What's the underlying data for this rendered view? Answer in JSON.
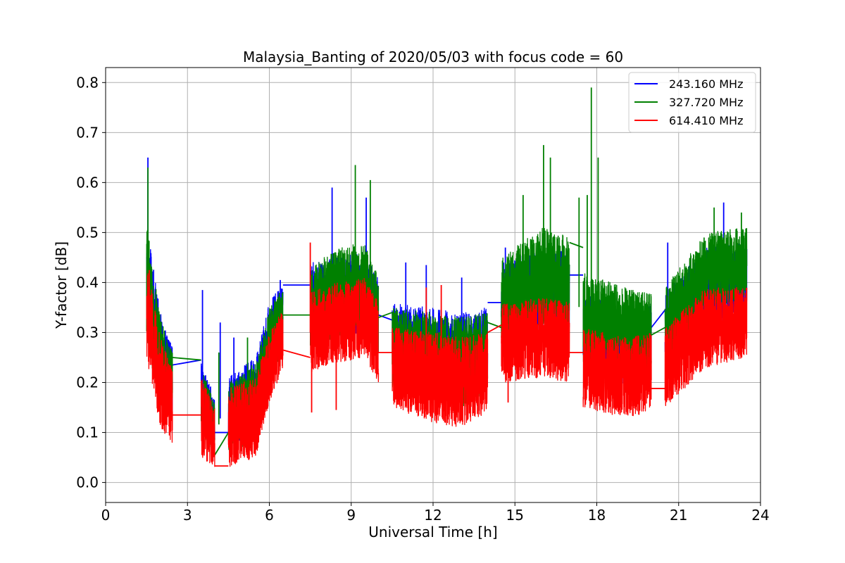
{
  "chart_data": {
    "type": "line",
    "title": "Malaysia_Banting of 2020/05/03 with focus code = 60",
    "xlabel": "Universal Time [h]",
    "ylabel": "Y-factor [dB]",
    "xlim": [
      0,
      24
    ],
    "ylim": [
      -0.04,
      0.83
    ],
    "xticks": [
      0,
      3,
      6,
      9,
      12,
      15,
      18,
      21,
      24
    ],
    "yticks": [
      0.0,
      0.1,
      0.2,
      0.3,
      0.4,
      0.5,
      0.6,
      0.7,
      0.8
    ],
    "grid": true,
    "legend_position": "top-right",
    "segments": [
      {
        "start": 1.5,
        "end": 2.45
      },
      {
        "start": 3.5,
        "end": 4.0
      },
      {
        "start": 4.5,
        "end": 6.5
      },
      {
        "start": 7.5,
        "end": 10.0
      },
      {
        "start": 10.5,
        "end": 14.0
      },
      {
        "start": 14.5,
        "end": 17.0
      },
      {
        "start": 17.5,
        "end": 20.0
      },
      {
        "start": 20.5,
        "end": 23.5
      }
    ],
    "series": [
      {
        "name": "243.160 MHz",
        "color": "#0000ff",
        "profile": [
          [
            1.5,
            0.4,
            0.12
          ],
          [
            2.0,
            0.25,
            0.09
          ],
          [
            2.45,
            0.2,
            0.07
          ],
          [
            3.5,
            0.17,
            0.07
          ],
          [
            4.0,
            0.12,
            0.05
          ],
          [
            4.5,
            0.14,
            0.07
          ],
          [
            5.5,
            0.17,
            0.08
          ],
          [
            6.0,
            0.28,
            0.08
          ],
          [
            6.5,
            0.34,
            0.06
          ],
          [
            7.5,
            0.36,
            0.08
          ],
          [
            8.5,
            0.37,
            0.08
          ],
          [
            9.5,
            0.38,
            0.08
          ],
          [
            10.0,
            0.33,
            0.08
          ],
          [
            10.5,
            0.28,
            0.08
          ],
          [
            12.0,
            0.26,
            0.09
          ],
          [
            13.0,
            0.25,
            0.09
          ],
          [
            14.0,
            0.27,
            0.08
          ],
          [
            14.5,
            0.36,
            0.08
          ],
          [
            16.0,
            0.38,
            0.09
          ],
          [
            17.0,
            0.38,
            0.08
          ],
          [
            17.5,
            0.3,
            0.08
          ],
          [
            19.0,
            0.27,
            0.08
          ],
          [
            20.0,
            0.28,
            0.08
          ],
          [
            20.5,
            0.3,
            0.08
          ],
          [
            22.0,
            0.39,
            0.08
          ],
          [
            23.5,
            0.41,
            0.07
          ]
        ],
        "spikes": [
          [
            1.55,
            0.65
          ],
          [
            3.55,
            0.385
          ],
          [
            4.2,
            0.32
          ],
          [
            4.7,
            0.29
          ],
          [
            6.4,
            0.405
          ],
          [
            8.3,
            0.59
          ],
          [
            9.55,
            0.57
          ],
          [
            11.0,
            0.44
          ],
          [
            11.75,
            0.435
          ],
          [
            13.05,
            0.41
          ],
          [
            14.65,
            0.47
          ],
          [
            20.6,
            0.48
          ],
          [
            22.65,
            0.56
          ]
        ],
        "gaps": [
          [
            2.45,
            0.235,
            3.5,
            0.245
          ],
          [
            4.0,
            0.1,
            4.5,
            0.1
          ],
          [
            6.5,
            0.395,
            7.5,
            0.395
          ],
          [
            10.0,
            0.335,
            10.5,
            0.325
          ],
          [
            14.0,
            0.36,
            14.5,
            0.36
          ],
          [
            17.0,
            0.415,
            17.5,
            0.415
          ],
          [
            20.0,
            0.31,
            20.5,
            0.345
          ]
        ]
      },
      {
        "name": "327.720 MHz",
        "color": "#008000",
        "profile": [
          [
            1.5,
            0.4,
            0.12
          ],
          [
            2.0,
            0.24,
            0.09
          ],
          [
            2.45,
            0.19,
            0.07
          ],
          [
            3.5,
            0.16,
            0.07
          ],
          [
            4.0,
            0.11,
            0.05
          ],
          [
            4.5,
            0.13,
            0.07
          ],
          [
            5.5,
            0.16,
            0.08
          ],
          [
            6.0,
            0.27,
            0.08
          ],
          [
            6.5,
            0.33,
            0.06
          ],
          [
            7.5,
            0.35,
            0.08
          ],
          [
            8.5,
            0.38,
            0.09
          ],
          [
            9.5,
            0.39,
            0.09
          ],
          [
            10.0,
            0.33,
            0.08
          ],
          [
            10.5,
            0.27,
            0.08
          ],
          [
            12.0,
            0.25,
            0.09
          ],
          [
            13.0,
            0.24,
            0.09
          ],
          [
            14.0,
            0.26,
            0.08
          ],
          [
            14.5,
            0.36,
            0.09
          ],
          [
            16.0,
            0.41,
            0.1
          ],
          [
            17.0,
            0.4,
            0.09
          ],
          [
            17.5,
            0.33,
            0.09
          ],
          [
            19.0,
            0.31,
            0.08
          ],
          [
            20.0,
            0.3,
            0.08
          ],
          [
            20.5,
            0.31,
            0.08
          ],
          [
            22.0,
            0.42,
            0.08
          ],
          [
            23.5,
            0.44,
            0.07
          ]
        ],
        "spikes": [
          [
            1.55,
            0.63
          ],
          [
            4.15,
            0.26
          ],
          [
            5.2,
            0.29
          ],
          [
            9.15,
            0.635
          ],
          [
            9.7,
            0.605
          ],
          [
            15.3,
            0.575
          ],
          [
            16.05,
            0.675
          ],
          [
            16.3,
            0.65
          ],
          [
            17.35,
            0.57
          ],
          [
            17.65,
            0.575
          ],
          [
            17.8,
            0.79
          ],
          [
            18.05,
            0.65
          ],
          [
            22.3,
            0.55
          ],
          [
            23.3,
            0.54
          ]
        ],
        "gaps": [
          [
            2.45,
            0.25,
            3.5,
            0.245
          ],
          [
            4.0,
            0.055,
            4.5,
            0.1
          ],
          [
            6.5,
            0.335,
            7.5,
            0.335
          ],
          [
            10.0,
            0.33,
            10.5,
            0.34
          ],
          [
            14.0,
            0.32,
            14.5,
            0.31
          ],
          [
            17.0,
            0.48,
            17.5,
            0.47
          ],
          [
            20.0,
            0.295,
            20.5,
            0.31
          ]
        ]
      },
      {
        "name": "614.410 MHz",
        "color": "#ff0000",
        "profile": [
          [
            1.5,
            0.34,
            0.1
          ],
          [
            2.0,
            0.2,
            0.09
          ],
          [
            2.45,
            0.15,
            0.08
          ],
          [
            3.5,
            0.13,
            0.08
          ],
          [
            4.0,
            0.09,
            0.06
          ],
          [
            4.5,
            0.11,
            0.08
          ],
          [
            5.5,
            0.13,
            0.08
          ],
          [
            6.0,
            0.23,
            0.07
          ],
          [
            6.5,
            0.29,
            0.06
          ],
          [
            7.5,
            0.3,
            0.08
          ],
          [
            8.5,
            0.32,
            0.08
          ],
          [
            9.5,
            0.33,
            0.08
          ],
          [
            10.0,
            0.28,
            0.08
          ],
          [
            10.5,
            0.23,
            0.08
          ],
          [
            12.0,
            0.21,
            0.09
          ],
          [
            13.0,
            0.2,
            0.09
          ],
          [
            14.0,
            0.22,
            0.08
          ],
          [
            14.5,
            0.28,
            0.08
          ],
          [
            16.0,
            0.29,
            0.08
          ],
          [
            17.0,
            0.28,
            0.08
          ],
          [
            17.5,
            0.23,
            0.08
          ],
          [
            19.0,
            0.21,
            0.08
          ],
          [
            20.0,
            0.22,
            0.08
          ],
          [
            20.5,
            0.23,
            0.08
          ],
          [
            22.0,
            0.31,
            0.08
          ],
          [
            23.5,
            0.32,
            0.07
          ]
        ],
        "spikes": [
          [
            1.6,
            0.425
          ],
          [
            7.5,
            0.48
          ],
          [
            7.55,
            0.14
          ],
          [
            8.45,
            0.145
          ],
          [
            11.75,
            0.39
          ],
          [
            12.3,
            0.395
          ],
          [
            14.75,
            0.16
          ]
        ],
        "gaps": [
          [
            2.45,
            0.135,
            3.5,
            0.135
          ],
          [
            4.0,
            0.033,
            4.5,
            0.033
          ],
          [
            6.5,
            0.265,
            7.5,
            0.25
          ],
          [
            10.0,
            0.26,
            10.5,
            0.26
          ],
          [
            14.0,
            0.3,
            14.5,
            0.315
          ],
          [
            17.0,
            0.26,
            17.5,
            0.26
          ],
          [
            20.0,
            0.188,
            20.5,
            0.188
          ]
        ]
      }
    ]
  }
}
